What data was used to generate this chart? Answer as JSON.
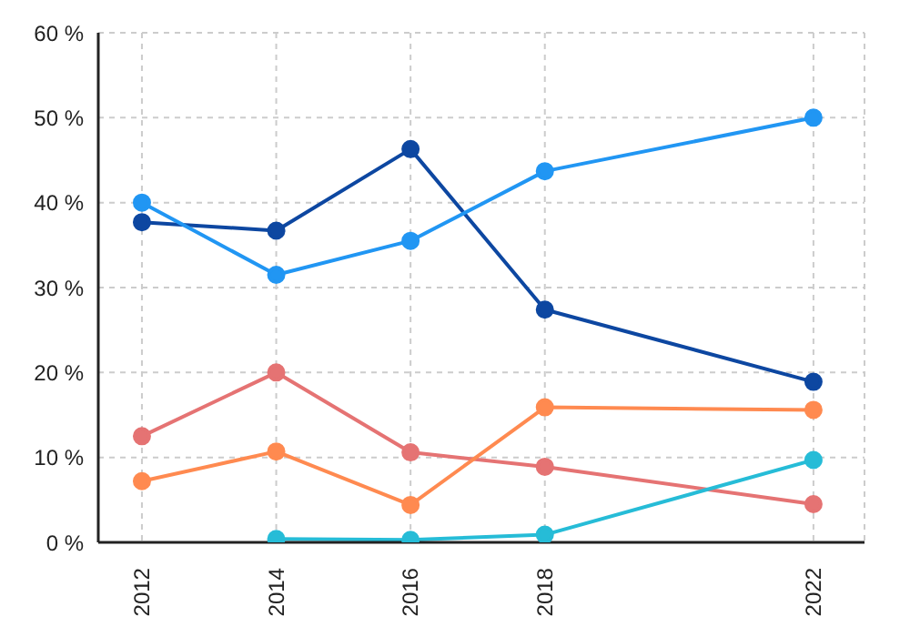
{
  "chart_data": {
    "type": "line",
    "x": [
      2012,
      2014,
      2016,
      2018,
      2022
    ],
    "series": [
      {
        "color": "#0d47a1",
        "values": [
          37.7,
          36.7,
          46.3,
          27.4,
          18.9
        ]
      },
      {
        "color": "#2196f3",
        "values": [
          40.0,
          31.5,
          35.5,
          43.7,
          50.0
        ]
      },
      {
        "color": "#e57373",
        "values": [
          12.5,
          20.0,
          10.6,
          8.9,
          4.5
        ]
      },
      {
        "color": "#ff8a50",
        "values": [
          7.2,
          10.7,
          4.4,
          15.9,
          15.6
        ]
      },
      {
        "color": "#26bcd7",
        "values": [
          null,
          0.4,
          0.3,
          0.9,
          9.7
        ]
      }
    ],
    "xlim": [
      2011.35,
      2022.76
    ],
    "xticks": [
      2012,
      2014,
      2016,
      2018,
      2022
    ],
    "ylim": [
      0,
      60
    ],
    "yticks": [
      {
        "value": 0,
        "label": "0 %"
      },
      {
        "value": 10,
        "label": "10 %"
      },
      {
        "value": 20,
        "label": "20 %"
      },
      {
        "value": 30,
        "label": "30 %"
      },
      {
        "value": 40,
        "label": "40 %"
      },
      {
        "value": 50,
        "label": "50 %"
      },
      {
        "value": 60,
        "label": "60 %"
      }
    ],
    "grid": true,
    "marker": "circle",
    "line_style": "solid",
    "legend": false
  }
}
